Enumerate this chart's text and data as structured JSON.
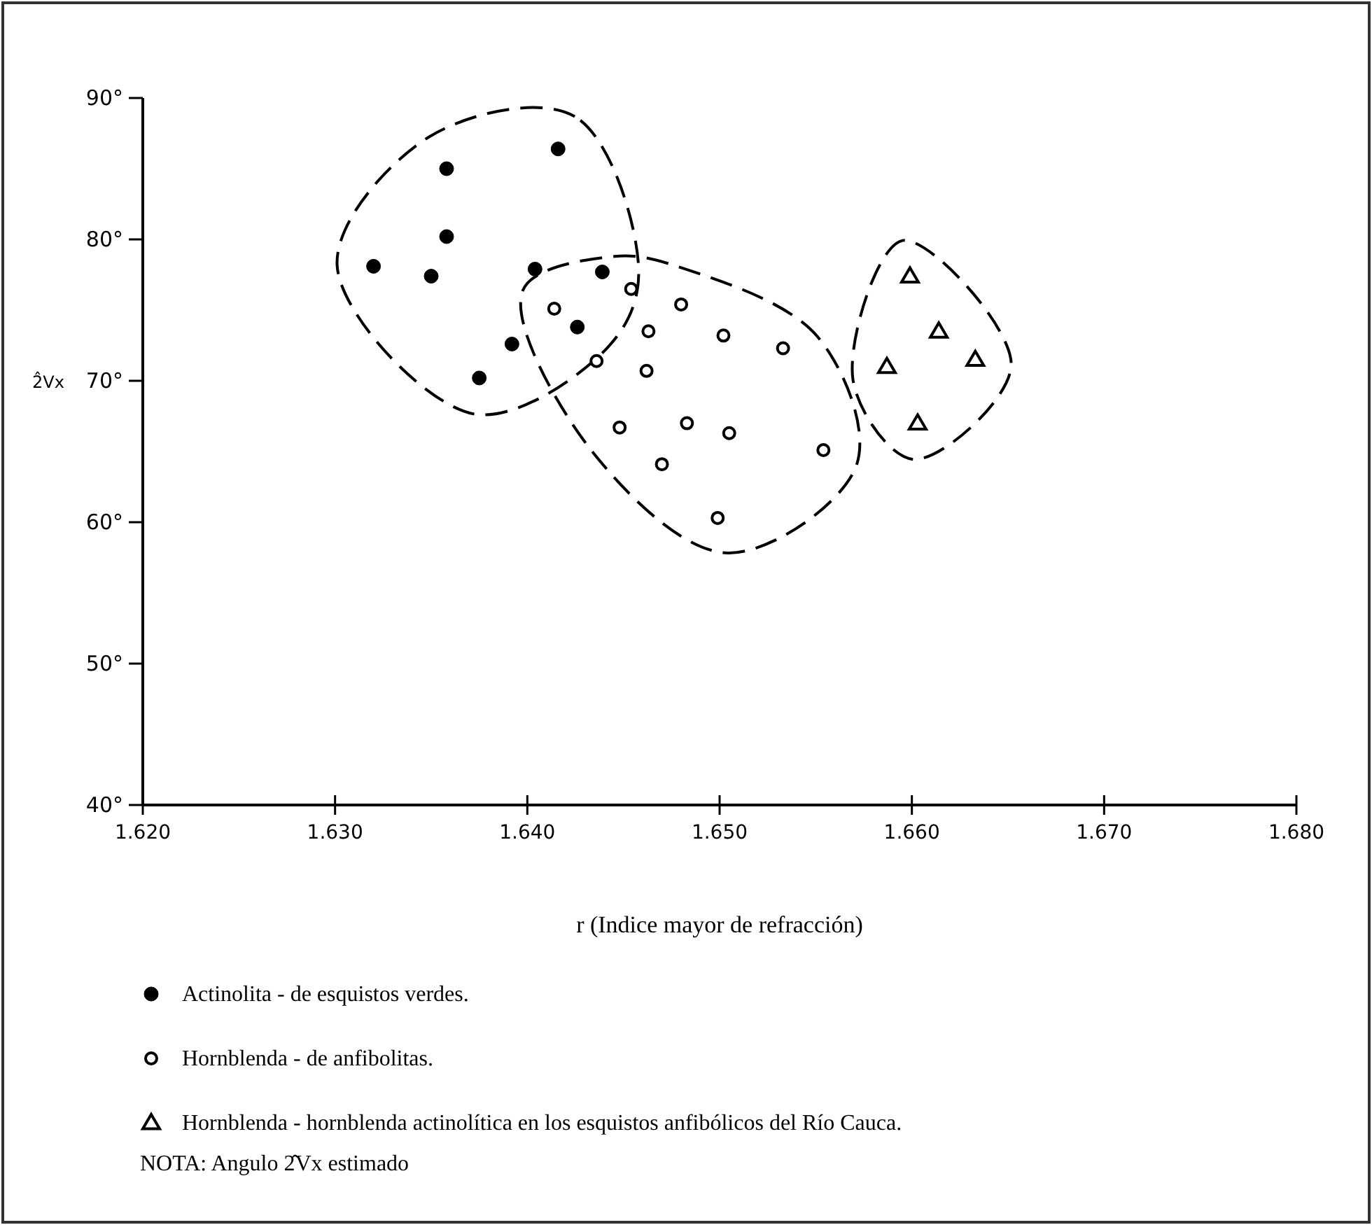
{
  "chart_data": {
    "type": "scatter",
    "xlabel": "r  (Indice mayor de refracción)",
    "ylabel": "2̂Vx",
    "xlim": [
      1.62,
      1.68
    ],
    "xticks": [
      {
        "value": 1.62,
        "label": "1.620"
      },
      {
        "value": 1.63,
        "label": "1.630"
      },
      {
        "value": 1.64,
        "label": "1.640"
      },
      {
        "value": 1.65,
        "label": "1.650"
      },
      {
        "value": 1.66,
        "label": "1.660"
      },
      {
        "value": 1.67,
        "label": "1.670"
      },
      {
        "value": 1.68,
        "label": "1.680"
      }
    ],
    "ylim": [
      40,
      90
    ],
    "yticks": [
      {
        "value": 40,
        "label": "40°"
      },
      {
        "value": 50,
        "label": "50°"
      },
      {
        "value": 60,
        "label": "60°"
      },
      {
        "value": 70,
        "label": "70°"
      },
      {
        "value": 80,
        "label": "80°"
      },
      {
        "value": 90,
        "label": "90°"
      }
    ],
    "grid": false,
    "legend": "bottom",
    "series": [
      {
        "name": "Actinolita - de esquistos verdes.",
        "color": "#000000",
        "marker": "circle",
        "x": [
          1.6416,
          1.6358,
          1.6358,
          1.632,
          1.635,
          1.6404,
          1.6439,
          1.6426,
          1.6392,
          1.6375
        ],
        "values": [
          86.4,
          85.0,
          80.2,
          78.1,
          77.4,
          77.9,
          77.7,
          73.8,
          72.6,
          70.2
        ]
      },
      {
        "name": "Hornblenda - de anfibolitas.",
        "color": "#ffffff",
        "marker": "circle",
        "x": [
          1.6454,
          1.6414,
          1.648,
          1.6463,
          1.6502,
          1.6533,
          1.6436,
          1.6462,
          1.6448,
          1.6483,
          1.6505,
          1.6554,
          1.647,
          1.6499
        ],
        "values": [
          76.5,
          75.1,
          75.4,
          73.5,
          73.2,
          72.3,
          71.4,
          70.7,
          66.7,
          67.0,
          66.3,
          65.1,
          64.1,
          60.3
        ]
      },
      {
        "name": "Hornblenda - hornblenda actinolítica en los esquistos anfibólicos del Río Cauca.",
        "color": "#ffffff",
        "marker": "triangle",
        "x": [
          1.6599,
          1.6614,
          1.6587,
          1.6633,
          1.6603
        ],
        "values": [
          77.4,
          73.5,
          71.0,
          71.5,
          67.0
        ]
      }
    ],
    "annotations": [
      "NOTA:  Angulo 2̂Vx estimado"
    ]
  }
}
